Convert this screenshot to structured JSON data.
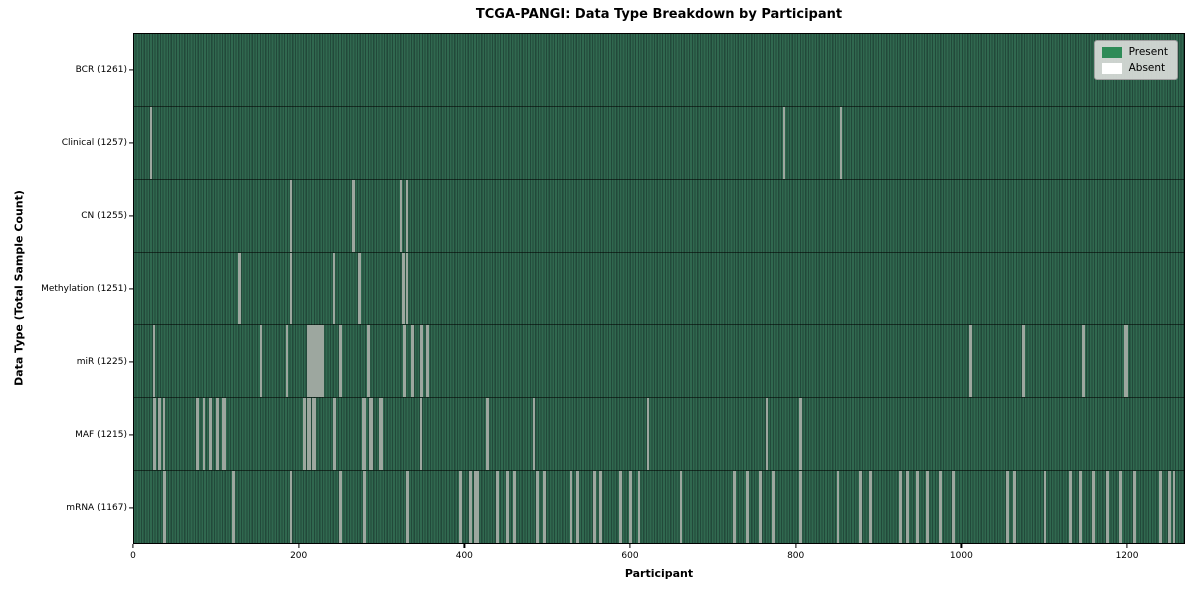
{
  "title": "TCGA-PANGI: Data Type Breakdown by Participant",
  "axes": {
    "xlabel": "Participant",
    "ylabel": "Data Type (Total Sample Count)"
  },
  "legend": {
    "present_label": "Present",
    "absent_label": "Absent"
  },
  "colors": {
    "present": "#2e8b57",
    "present_stripe_light": "#30684f",
    "present_stripe_dark": "#22493a",
    "absent": "#ffffff",
    "absent_line": "#9da79f",
    "legend_bg": "#d8dbd8"
  },
  "chart_data": {
    "type": "heatmap",
    "title": "TCGA-PANGI: Data Type Breakdown by Participant",
    "xlabel": "Participant",
    "ylabel": "Data Type (Total Sample Count)",
    "x_ticks": [
      0,
      200,
      400,
      600,
      800,
      1000,
      1200
    ],
    "xlim": [
      0,
      1270
    ],
    "n_participants": 1261,
    "legend_entries": [
      {
        "label": "Present",
        "color": "#2e8b57"
      },
      {
        "label": "Absent",
        "color": "#ffffff"
      }
    ],
    "rows": [
      {
        "label": "BCR (1261)",
        "data_type": "BCR",
        "total": 1261,
        "absent": []
      },
      {
        "label": "Clinical (1257)",
        "data_type": "Clinical",
        "total": 1257,
        "absent": [
          20,
          21,
          785,
          853
        ]
      },
      {
        "label": "CN (1255)",
        "data_type": "CN",
        "total": 1255,
        "absent": [
          189,
          190,
          264,
          265,
          322,
          330
        ]
      },
      {
        "label": "Methylation (1251)",
        "data_type": "Methylation",
        "total": 1251,
        "absent": [
          127,
          128,
          189,
          190,
          241,
          272,
          273,
          325,
          326,
          330
        ]
      },
      {
        "label": "miR (1225)",
        "data_type": "miR",
        "total": 1225,
        "absent": [
          24,
          153,
          185,
          210,
          212,
          214,
          216,
          218,
          220,
          222,
          224,
          226,
          228,
          249,
          250,
          282,
          283,
          284,
          326,
          327,
          336,
          337,
          347,
          348,
          354,
          355,
          1009,
          1010,
          1073,
          1074,
          1146,
          1147,
          1196,
          1197,
          1198,
          1199
        ]
      },
      {
        "label": "MAF (1215)",
        "data_type": "MAF",
        "total": 1215,
        "absent": [
          24,
          25,
          30,
          31,
          36,
          76,
          77,
          84,
          85,
          92,
          93,
          100,
          101,
          108,
          109,
          110,
          205,
          206,
          207,
          210,
          211,
          212,
          216,
          217,
          218,
          241,
          242,
          243,
          277,
          278,
          279,
          285,
          286,
          287,
          297,
          298,
          299,
          346,
          347,
          426,
          427,
          483,
          620,
          764,
          804,
          805
        ]
      },
      {
        "label": "mRNA (1167)",
        "data_type": "mRNA",
        "total": 1167,
        "absent": [
          36,
          37,
          120,
          121,
          189,
          190,
          249,
          250,
          278,
          279,
          330,
          331,
          394,
          395,
          406,
          407,
          412,
          414,
          415,
          438,
          439,
          440,
          450,
          451,
          459,
          460,
          487,
          488,
          495,
          496,
          527,
          528,
          535,
          536,
          555,
          556,
          563,
          564,
          587,
          588,
          599,
          600,
          610,
          660,
          724,
          725,
          740,
          741,
          756,
          757,
          772,
          773,
          804,
          805,
          850,
          877,
          878,
          889,
          890,
          925,
          926,
          933,
          934,
          945,
          946,
          957,
          958,
          973,
          974,
          989,
          990,
          1054,
          1055,
          1062,
          1063,
          1100,
          1130,
          1131,
          1142,
          1143,
          1158,
          1159,
          1175,
          1176,
          1190,
          1191,
          1207,
          1208,
          1239,
          1240,
          1250,
          1251,
          1255,
          1256
        ]
      }
    ]
  }
}
